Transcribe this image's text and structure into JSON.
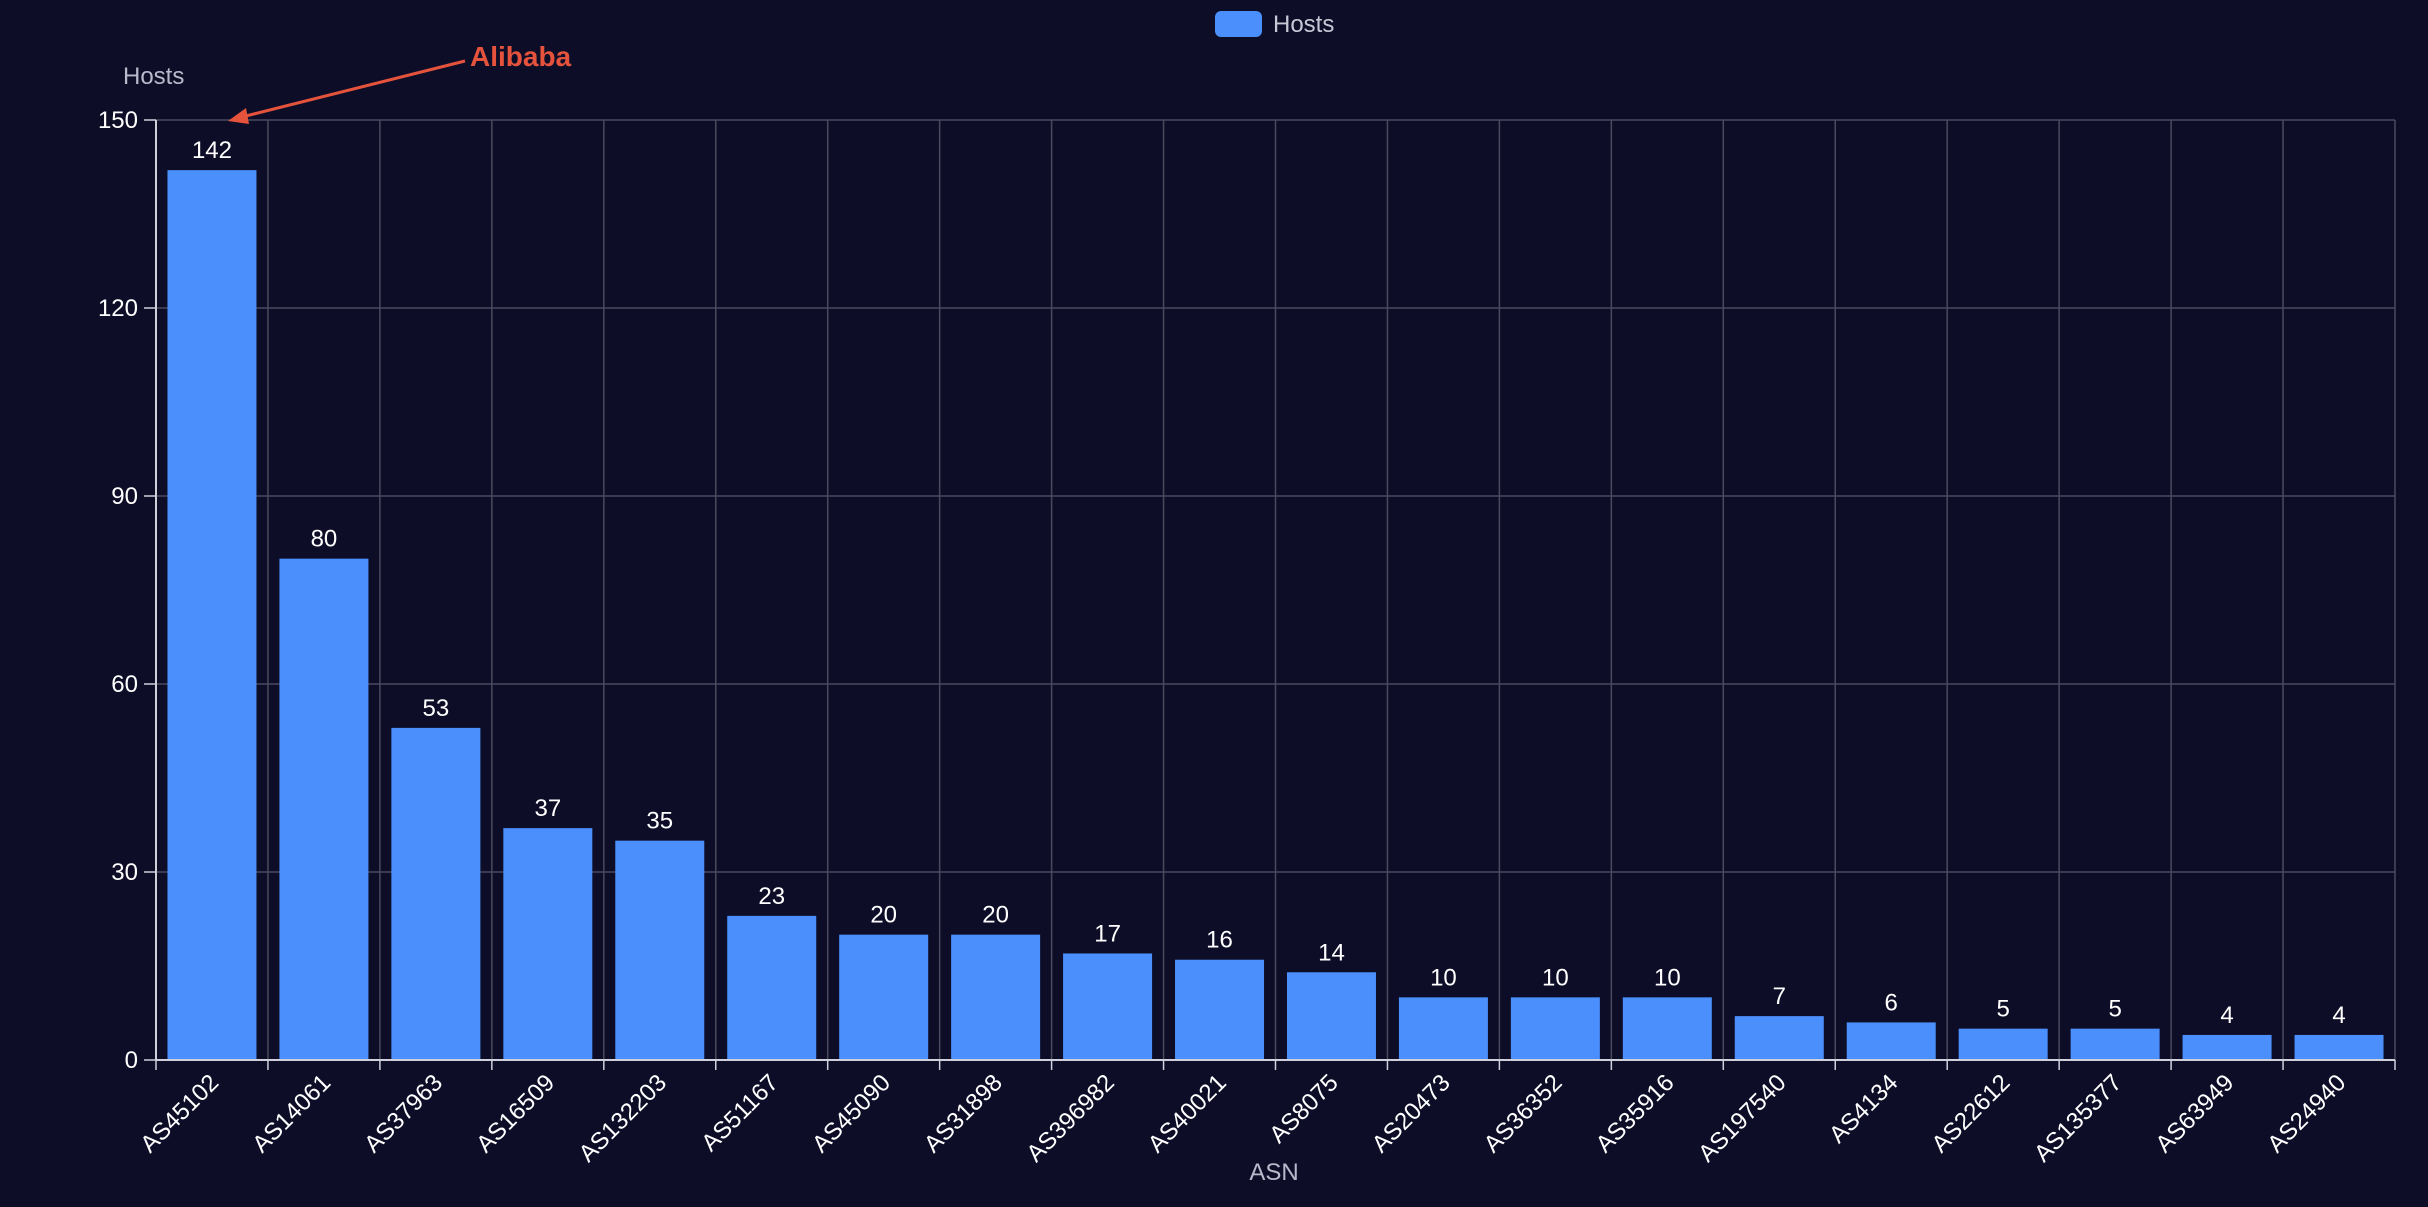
{
  "chart_data": {
    "type": "bar",
    "categories": [
      "AS45102",
      "AS14061",
      "AS37963",
      "AS16509",
      "AS132203",
      "AS51167",
      "AS45090",
      "AS31898",
      "AS396982",
      "AS40021",
      "AS8075",
      "AS20473",
      "AS36352",
      "AS35916",
      "AS197540",
      "AS4134",
      "AS22612",
      "AS135377",
      "AS63949",
      "AS24940"
    ],
    "series": [
      {
        "name": "Hosts",
        "values": [
          142,
          80,
          53,
          37,
          35,
          23,
          20,
          20,
          17,
          16,
          14,
          10,
          10,
          10,
          7,
          6,
          5,
          5,
          4,
          4
        ]
      }
    ],
    "xlabel": "ASN",
    "ylabel": "Hosts",
    "ylim": [
      0,
      150
    ],
    "yticks": [
      0,
      30,
      60,
      90,
      120,
      150
    ],
    "grid": true,
    "legend_position": "top-center",
    "data_labels": true,
    "annotation": {
      "text": "Alibaba",
      "target_category": "AS45102",
      "target_value": 150
    },
    "colors": {
      "background": "#0e0d28",
      "bar": "#4a8ffb",
      "grid": "#4a4a5e",
      "axis": "#d0d0dc",
      "annotation": "#e5533d"
    }
  }
}
